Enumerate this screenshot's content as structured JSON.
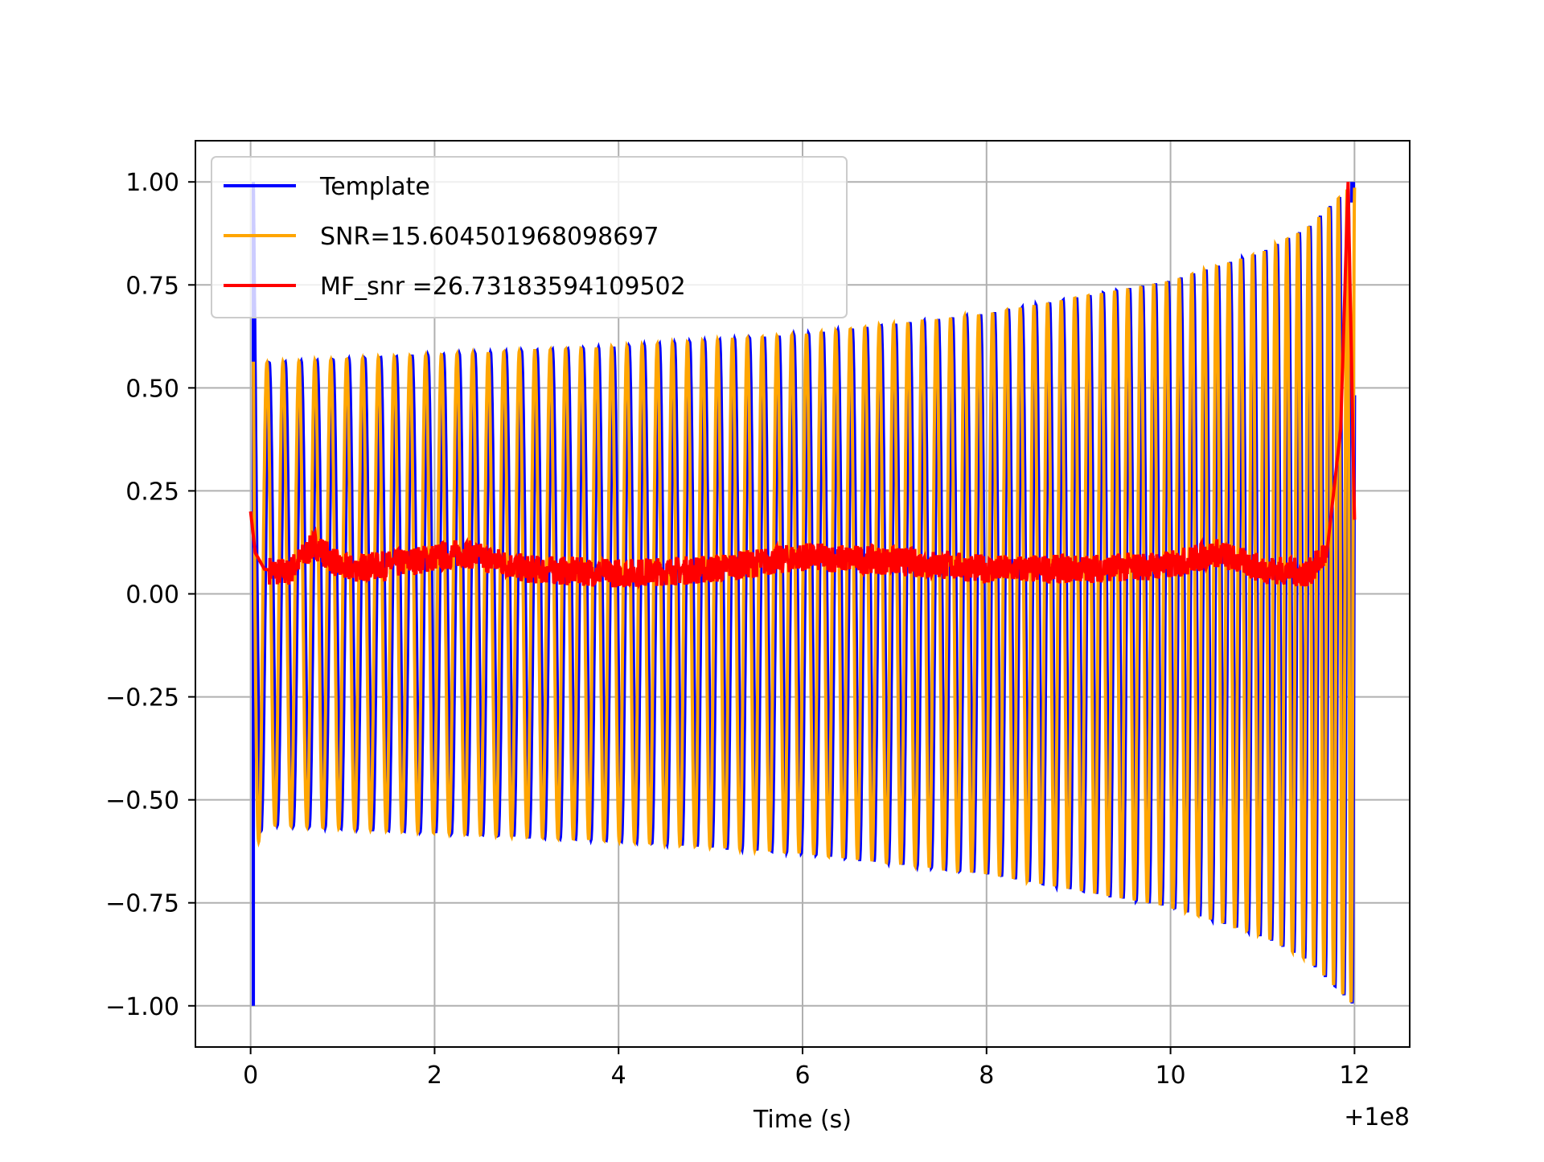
{
  "chart_data": {
    "type": "line",
    "xlabel": "Time (s)",
    "ylabel": "",
    "title": "",
    "x_offset_label": "+1e8",
    "xlim": [
      -0.6,
      12.6
    ],
    "ylim": [
      -1.1,
      1.1
    ],
    "xticks": [
      0,
      2,
      4,
      6,
      8,
      10,
      12
    ],
    "xtick_labels": [
      "0",
      "2",
      "4",
      "6",
      "8",
      "10",
      "12"
    ],
    "yticks": [
      1.0,
      0.75,
      0.5,
      0.25,
      0.0,
      -0.25,
      -0.5,
      -0.75,
      -1.0
    ],
    "ytick_labels": [
      "1.00",
      "0.75",
      "0.50",
      "0.25",
      "0.00",
      "−0.25",
      "−0.50",
      "−0.75",
      "−1.00"
    ],
    "grid": true,
    "legend_position": "upper-left",
    "series": [
      {
        "name": "Template",
        "color": "#0000ff",
        "description": "chirp oscillation, amplitude growing from ~0.56 to 1.0, frequency increasing toward merger at ~12.0",
        "envelope_x": [
          0.1,
          2,
          4,
          6,
          8,
          10,
          11,
          11.5,
          12.0
        ],
        "envelope_y": [
          0.56,
          0.58,
          0.6,
          0.63,
          0.68,
          0.76,
          0.83,
          0.89,
          1.0
        ],
        "start_spike_x": 0.03,
        "start_spike_range": [
          -1.0,
          1.0
        ]
      },
      {
        "name": "SNR=15.604501968098697",
        "color": "#ffa500",
        "description": "chirp oscillation, amplitude growing from ~0.56 to 1.0, frequency increasing toward merger at ~12.0",
        "envelope_x": [
          0.1,
          2,
          4,
          6,
          8,
          10,
          11,
          11.5,
          12.0
        ],
        "envelope_y": [
          0.56,
          0.58,
          0.6,
          0.63,
          0.68,
          0.76,
          0.83,
          0.89,
          1.0
        ]
      },
      {
        "name": "MF_snr =26.73183594109502",
        "color": "#ff0000",
        "description": "noisy matched-filter output near 0.02-0.12, peaking near 0.45-1.0 at ~11.9",
        "x": [
          0.0,
          0.05,
          0.15,
          0.4,
          0.7,
          1.0,
          1.5,
          2.3,
          3.0,
          4.0,
          5.0,
          6.0,
          7.0,
          8.0,
          9.0,
          10.0,
          10.5,
          11.0,
          11.5,
          11.7,
          11.85,
          11.93,
          12.0
        ],
        "y": [
          0.2,
          0.1,
          0.06,
          0.05,
          0.12,
          0.06,
          0.07,
          0.1,
          0.06,
          0.05,
          0.06,
          0.09,
          0.08,
          0.06,
          0.06,
          0.07,
          0.1,
          0.06,
          0.05,
          0.1,
          0.4,
          1.0,
          0.18
        ]
      }
    ]
  }
}
